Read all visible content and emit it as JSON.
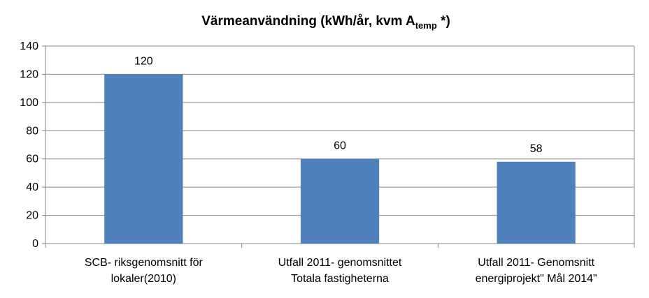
{
  "chart_data": {
    "type": "bar",
    "title": "Värmeanvändning (kWh/år, kvm A",
    "title_subscript": "temp",
    "title_end": " *)",
    "categories": [
      [
        "SCB- riksgenomsnitt för",
        "lokaler(2010)"
      ],
      [
        "Utfall 2011- genomsnittet",
        "Totala fastigheterna"
      ],
      [
        "Utfall 2011- Genomsnitt",
        "energiprojekt\" Mål 2014\""
      ]
    ],
    "values": [
      120,
      60,
      58
    ],
    "color": "#4f81bd",
    "ylim": [
      0,
      140
    ],
    "yticks": [
      0,
      20,
      40,
      60,
      80,
      100,
      120,
      140
    ],
    "grid": true
  }
}
